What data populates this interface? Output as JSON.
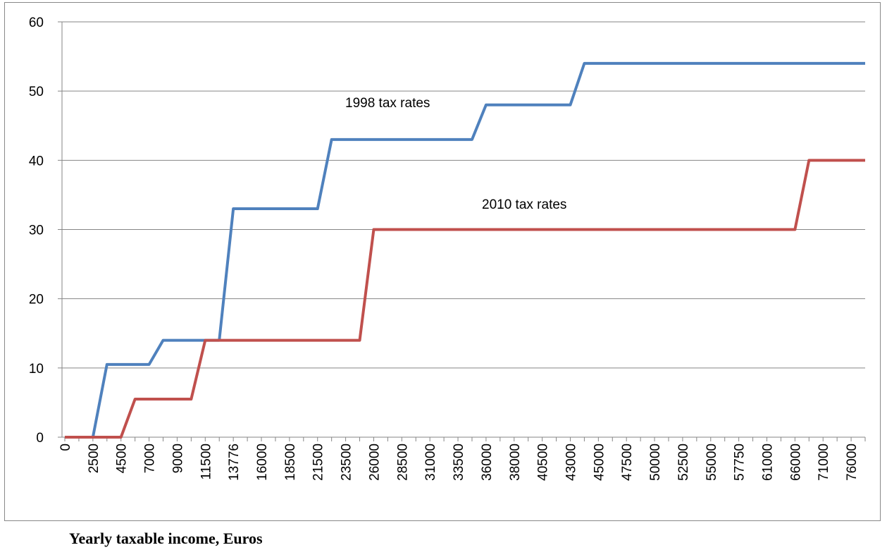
{
  "chart_data": {
    "type": "line",
    "x_label": "Yearly taxable income, Euros",
    "categories": [
      "0",
      null,
      "2500",
      null,
      "4500",
      null,
      "7000",
      null,
      "9000",
      null,
      "11500",
      null,
      "13776",
      null,
      "16000",
      null,
      "18500",
      null,
      "21500",
      null,
      "23500",
      null,
      "26000",
      null,
      "28500",
      null,
      "31000",
      null,
      "33500",
      null,
      "36000",
      null,
      "38000",
      null,
      "40500",
      null,
      "43000",
      null,
      "45000",
      null,
      "47500",
      null,
      "50000",
      null,
      "52500",
      null,
      "55000",
      null,
      "57750",
      null,
      "61000",
      null,
      "66000",
      null,
      "71000",
      null,
      "76000",
      null
    ],
    "series": [
      {
        "name": "1998 tax rates",
        "color": "#4f81bd",
        "values": [
          0,
          0,
          0,
          10.5,
          10.5,
          10.5,
          10.5,
          14,
          14,
          14,
          14,
          14,
          33,
          33,
          33,
          33,
          33,
          33,
          33,
          43,
          43,
          43,
          43,
          43,
          43,
          43,
          43,
          43,
          43,
          43,
          48,
          48,
          48,
          48,
          48,
          48,
          48,
          54,
          54,
          54,
          54,
          54,
          54,
          54,
          54,
          54,
          54,
          54,
          54,
          54,
          54,
          54,
          54,
          54,
          54,
          54,
          54,
          54
        ]
      },
      {
        "name": "2010 tax rates",
        "color": "#c0504d",
        "values": [
          0,
          0,
          0,
          0,
          0,
          5.5,
          5.5,
          5.5,
          5.5,
          5.5,
          14,
          14,
          14,
          14,
          14,
          14,
          14,
          14,
          14,
          14,
          14,
          14,
          30,
          30,
          30,
          30,
          30,
          30,
          30,
          30,
          30,
          30,
          30,
          30,
          30,
          30,
          30,
          30,
          30,
          30,
          30,
          30,
          30,
          30,
          30,
          30,
          30,
          30,
          30,
          30,
          30,
          30,
          30,
          40,
          40,
          40,
          40,
          40
        ]
      }
    ],
    "ylim": [
      0,
      60
    ],
    "yticks": [
      0,
      10,
      20,
      30,
      40,
      50,
      60
    ],
    "grid": true
  }
}
